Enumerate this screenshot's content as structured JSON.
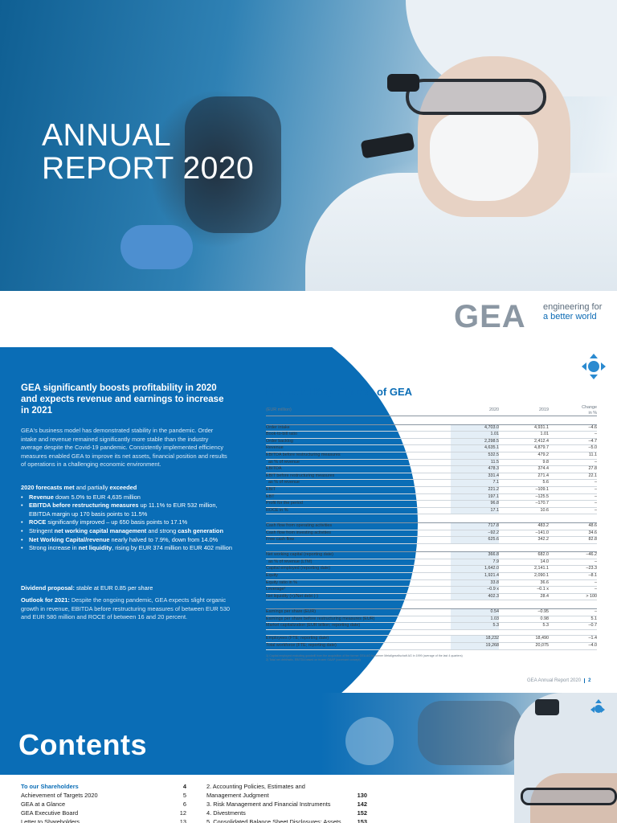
{
  "cover": {
    "title_line1": "ANNUAL",
    "title_line2": "REPORT 2020",
    "logo_text": "GEA",
    "tagline_line1": "engineering for",
    "tagline_line2": "a better world"
  },
  "key_figures_page": {
    "headline": "GEA significantly boosts profitability in 2020 and expects revenue and earnings to increase in 2021",
    "intro": "GEA's business model has demonstrated stability in the pandemic. Order intake and revenue remained significantly more stable than the industry average despite the Covid-19 pandemic. Consistently implemented efficiency measures enabled GEA to improve its net assets, financial position and results of operations in a challenging economic environment.",
    "forecast_lead_bold1": "2020 forecasts met",
    "forecast_lead_mid": " and partially ",
    "forecast_lead_bold2": "exceeded",
    "bullets": [
      {
        "bold": "Revenue",
        "text": " down 5.0% to EUR 4,635 million"
      },
      {
        "bold": "EBITDA before restructuring measures",
        "text": " up 11.1% to EUR 532 million, EBITDA margin up 170 basis points to 11.5%"
      },
      {
        "bold": "ROCE",
        "text": " significantly improved – up 650 basis points to 17.1%"
      },
      {
        "pre": "Stringent ",
        "bold": "net working capital management",
        "text": " and strong ",
        "bold2": "cash generation"
      },
      {
        "bold": "Net Working Capital/revenue",
        "text": " nearly halved to 7.9%, down from 14.0%"
      },
      {
        "pre": "Strong increase in ",
        "bold": "net liquidity",
        "text": ", rising by EUR 374 million to EUR 402 million"
      }
    ],
    "dividend_label": "Dividend proposal:",
    "dividend_text": " stable at EUR 0.85 per share",
    "outlook_label": "Outlook for 2021:",
    "outlook_text": " Despite the ongoing pandemic, GEA expects slight organic growth in revenue, EBITDA before restructuring measures of between EUR 530 and EUR 580 million and ROCE of between 16 and 20 percent.",
    "table_title": "Financial Key Figures of GEA",
    "table_header": {
      "unit": "(EUR million)",
      "y2020": "2020",
      "y2019": "2019",
      "change_line1": "Change",
      "change_line2": "in %"
    },
    "table_rows": [
      {
        "type": "section",
        "label": "Results of operations"
      },
      {
        "label": "Order intake",
        "v2020": "4,703.0",
        "v2019": "4,931.1",
        "chg": "–4.6"
      },
      {
        "label": "Book-to-bill ratio",
        "v2020": "1.01",
        "v2019": "1.01",
        "chg": "–"
      },
      {
        "label": "Order backlog",
        "v2020": "2,298.5",
        "v2019": "2,412.4",
        "chg": "–4.7"
      },
      {
        "label": "Revenue",
        "v2020": "4,635.1",
        "v2019": "4,879.7",
        "chg": "–5.0"
      },
      {
        "label": "EBITDA before restructuring measures",
        "v2020": "532.5",
        "v2019": "479.2",
        "chg": "11.1"
      },
      {
        "label": "as % of revenue",
        "v2020": "11.5",
        "v2019": "9.8",
        "chg": "–",
        "ind": true
      },
      {
        "label": "EBITDA",
        "v2020": "478.3",
        "v2019": "374.4",
        "chg": "27.8"
      },
      {
        "label": "EBIT before restructuring measures",
        "v2020": "331.4",
        "v2019": "271.4",
        "chg": "22.1"
      },
      {
        "label": "as % of revenue",
        "v2020": "7.1",
        "v2019": "5.6",
        "chg": "–",
        "ind": true
      },
      {
        "label": "EBIT",
        "v2020": "221.2",
        "v2019": "–109.1",
        "chg": "–"
      },
      {
        "label": "EBT",
        "v2020": "197.1",
        "v2019": "–125.5",
        "chg": "–"
      },
      {
        "label": "Profit for the period",
        "v2020": "96.8",
        "v2019": "–170.7",
        "chg": "–"
      },
      {
        "label": "ROCE in %",
        "v2020": "17.1",
        "v2019": "10.6",
        "chg": "–"
      },
      {
        "type": "section",
        "label": "Financial position"
      },
      {
        "label": "Cash flow from operating activities",
        "v2020": "717.8",
        "v2019": "483.2",
        "chg": "48.6"
      },
      {
        "label": "Cash flow from investing activities",
        "v2020": "–92.2",
        "v2019": "–141.0",
        "chg": "34.6"
      },
      {
        "label": "Free cash flow",
        "v2020": "625.6",
        "v2019": "342.2",
        "chg": "82.8"
      },
      {
        "type": "section",
        "label": "Net assets"
      },
      {
        "label": "Net working capital (reporting date)",
        "v2020": "366.8",
        "v2019": "682.0",
        "chg": "–46.2"
      },
      {
        "label": "as % of revenue (LTM)",
        "v2020": "7.9",
        "v2019": "14.0",
        "chg": "–",
        "ind": true
      },
      {
        "label": "Capital employed (reporting date)",
        "v2020": "1,642.0",
        "v2019": "2,141.1",
        "chg": "–23.3"
      },
      {
        "label": "Equity",
        "v2020": "1,921.4",
        "v2019": "2,090.1",
        "chg": "–8.1"
      },
      {
        "label": "Equity ratio in %",
        "v2020": "33.8",
        "v2019": "36.6",
        "chg": "–"
      },
      {
        "label": "Leverage²",
        "v2020": "–0.9 x",
        "v2019": "–0.1 x",
        "chg": "–"
      },
      {
        "label": "Net liquidity (+)/Net debt (-)",
        "v2020": "402.3",
        "v2019": "28.4",
        "chg": "> 100"
      },
      {
        "type": "section",
        "label": "GEA Shares"
      },
      {
        "label": "Earnings per share (EUR)",
        "v2020": "0.54",
        "v2019": "–0.95",
        "chg": "–"
      },
      {
        "label": "Earnings per share before restructuring measures (EUR)",
        "v2020": "1.03",
        "v2019": "0.98",
        "chg": "5.1"
      },
      {
        "label": "Market capitalization (EUR billion; reporting date)",
        "v2020": "5.3",
        "v2019": "5.3",
        "chg": "–0.7"
      },
      {
        "type": "spacer"
      },
      {
        "label": "Employees (FTE; reporting date)",
        "v2020": "18,232",
        "v2019": "18,490",
        "chg": "–1.4"
      },
      {
        "label": "Total workforce (FTE; reporting date)",
        "v2020": "19,268",
        "v2019": "20,075",
        "chg": "–4.0"
      }
    ],
    "footnote1": "1)  Capital employed excluding goodwill from the acquisition of the former GEA AG by former Metallgesellschaft AG in 1999 (average of the last 4 quarters)",
    "footnote2": "2)  Total net debt/ratio, EBITDA based on frozen GAAP (covenant concept)",
    "footer_text": "GEA Annual Report 2020",
    "footer_page": "2"
  },
  "contents_page": {
    "title": "Contents",
    "left_items": [
      {
        "label": "To our Shareholders",
        "page": "4",
        "head": true
      },
      {
        "label": "Achievement of Targets 2020",
        "page": "5"
      },
      {
        "label": "GEA at a Glance",
        "page": "6"
      },
      {
        "label": "GEA Executive Board",
        "page": "12"
      },
      {
        "label": "Letter to Shareholders",
        "page": "13"
      }
    ],
    "right_items": [
      {
        "label": "2.  Accounting Policies, Estimates and",
        "page": ""
      },
      {
        "label": "     Management Judgment",
        "page": "130"
      },
      {
        "label": "3.  Risk Management and Financial Instruments",
        "page": "142"
      },
      {
        "label": "4.  Divestments",
        "page": "152"
      },
      {
        "label": "5.  Consolidated Balance Sheet Disclosures: Assets",
        "page": "153"
      }
    ]
  },
  "colors": {
    "brand_blue": "#0a6db6",
    "accent_blue": "#2a8ad0",
    "text_dark": "#1a1a1a"
  }
}
